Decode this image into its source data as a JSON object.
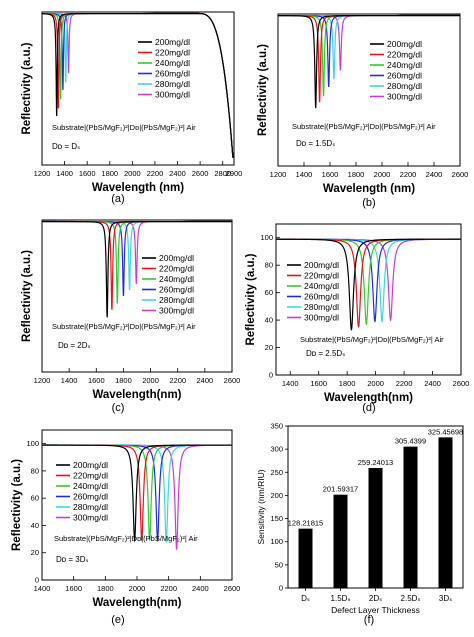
{
  "panels": [
    {
      "panel_label": "(a)",
      "type": "line",
      "xlabel": "Wavelength (nm)",
      "ylabel": "Reflectivity (a.u.)",
      "xlim": [
        1200,
        2900
      ],
      "x_ticks": [
        1200,
        1400,
        1600,
        1800,
        2000,
        2200,
        2400,
        2600,
        2800,
        2900
      ],
      "x_tick_labels": [
        "1200",
        "1400",
        "1600",
        "1800",
        "2000",
        "2200",
        "2400",
        "2600",
        "2800",
        "2900"
      ],
      "ylim": [
        0,
        100
      ],
      "y_ticks": [],
      "structure": "Substrate|(PbS/MgF₂)²|Dᴅ|(PbS/MgF₂)²| Air",
      "defect": "Dᴅ = Dₛ",
      "edge_start": 2580,
      "edge_end": 2890,
      "edge_floor": 5,
      "dip_width": 6,
      "legend_names": [
        "200mg/dl",
        "220mg/dl",
        "240mg/dl",
        "260mg/dl",
        "280mg/dl",
        "300mg/dl"
      ],
      "series": [
        {
          "name": "200mg/dl",
          "dip_x": 1330,
          "dip_y": 32
        },
        {
          "name": "220mg/dl",
          "dip_x": 1345,
          "dip_y": 37
        },
        {
          "name": "240mg/dl",
          "dip_x": 1365,
          "dip_y": 43
        },
        {
          "name": "260mg/dl",
          "dip_x": 1385,
          "dip_y": 49
        },
        {
          "name": "280mg/dl",
          "dip_x": 1410,
          "dip_y": 54
        },
        {
          "name": "300mg/dl",
          "dip_x": 1435,
          "dip_y": 60
        }
      ]
    },
    {
      "panel_label": "(b)",
      "type": "line",
      "xlabel": "Wavelength (nm)",
      "ylabel": "Reflectivity (a.u.)",
      "xlim": [
        1200,
        2600
      ],
      "x_ticks": [
        1200,
        1400,
        1600,
        1800,
        2000,
        2200,
        2400,
        2600
      ],
      "x_tick_labels": [
        "1200",
        "1400",
        "1600",
        "1800",
        "2000",
        "2200",
        "2400",
        "2600"
      ],
      "ylim": [
        0,
        100
      ],
      "y_ticks": [],
      "structure": "Substrate|(PbS/MgF₂)²|Dᴅ|(PbS/MgF₂)²| Air",
      "defect": "Dᴅ = 1.5Dₛ",
      "edge_start": null,
      "edge_end": null,
      "edge_floor": null,
      "dip_width": 8,
      "legend_names": [
        "200mg/dl",
        "220mg/dl",
        "240mg/dl",
        "260mg/dl",
        "280mg/dl",
        "300mg/dl"
      ],
      "series": [
        {
          "name": "200mg/dl",
          "dip_x": 1490,
          "dip_y": 38
        },
        {
          "name": "220mg/dl",
          "dip_x": 1520,
          "dip_y": 42
        },
        {
          "name": "240mg/dl",
          "dip_x": 1550,
          "dip_y": 46
        },
        {
          "name": "260mg/dl",
          "dip_x": 1590,
          "dip_y": 52
        },
        {
          "name": "280mg/dl",
          "dip_x": 1630,
          "dip_y": 57
        },
        {
          "name": "300mg/dl",
          "dip_x": 1680,
          "dip_y": 63
        }
      ]
    },
    {
      "panel_label": "(c)",
      "type": "line",
      "xlabel": "Wavelength(nm)",
      "ylabel": "Reflectivity (a.u.)",
      "xlim": [
        1200,
        2600
      ],
      "x_ticks": [
        1200,
        1400,
        1600,
        1800,
        2000,
        2200,
        2400,
        2600
      ],
      "x_tick_labels": [
        "1200",
        "1400",
        "1600",
        "1800",
        "2000",
        "2200",
        "2400",
        "2600"
      ],
      "ylim": [
        0,
        100
      ],
      "y_ticks": [],
      "structure": "Substrate|(PbS/MgF₂)²|Dᴅ|(PbS/MgF₂)²| Air",
      "defect": "Dᴅ = 2Dₛ",
      "edge_start": null,
      "edge_end": null,
      "edge_floor": null,
      "dip_width": 7,
      "legend_names": [
        "200mg/dl",
        "220mg/dl",
        "240mg/dl",
        "260mg/dl",
        "280mg/dl",
        "300mg/dl"
      ],
      "series": [
        {
          "name": "200mg/dl",
          "dip_x": 1680,
          "dip_y": 36
        },
        {
          "name": "220mg/dl",
          "dip_x": 1715,
          "dip_y": 41
        },
        {
          "name": "240mg/dl",
          "dip_x": 1755,
          "dip_y": 45
        },
        {
          "name": "260mg/dl",
          "dip_x": 1800,
          "dip_y": 50
        },
        {
          "name": "280mg/dl",
          "dip_x": 1845,
          "dip_y": 54
        },
        {
          "name": "300mg/dl",
          "dip_x": 1895,
          "dip_y": 58
        }
      ]
    },
    {
      "panel_label": "(d)",
      "type": "line",
      "xlabel": "Wavelength(nm)",
      "ylabel": "Reflectivity (a.u.)",
      "xlim": [
        1300,
        2600
      ],
      "x_ticks": [
        1400,
        1600,
        1800,
        2000,
        2200,
        2400,
        2600
      ],
      "x_tick_labels": [
        "1400",
        "1600",
        "1800",
        "2000",
        "2200",
        "2400",
        "2600"
      ],
      "ylim": [
        0,
        110
      ],
      "y_ticks": [
        0,
        20,
        40,
        60,
        80,
        100
      ],
      "structure": "Substrate|(PbS/MgF₂)²|Dᴅ|(PbS/MgF₂)²| Air",
      "defect": "Dᴅ = 2.5Dₛ",
      "edge_start": null,
      "edge_end": null,
      "edge_floor": null,
      "dip_width": 18,
      "legend_names": [
        "200mg/dl",
        "220mg/dl",
        "240mg/dl",
        "260mg/dl",
        "280mg/dl",
        "300mg/dl"
      ],
      "series": [
        {
          "name": "200mg/dl",
          "dip_x": 1830,
          "dip_y": 33
        },
        {
          "name": "220mg/dl",
          "dip_x": 1880,
          "dip_y": 35
        },
        {
          "name": "240mg/dl",
          "dip_x": 1935,
          "dip_y": 37
        },
        {
          "name": "260mg/dl",
          "dip_x": 1995,
          "dip_y": 39
        },
        {
          "name": "280mg/dl",
          "dip_x": 2045,
          "dip_y": 39
        },
        {
          "name": "300mg/dl",
          "dip_x": 2105,
          "dip_y": 40
        }
      ]
    },
    {
      "panel_label": "(e)",
      "type": "line",
      "xlabel": "Wavelength(nm)",
      "ylabel": "Reflectivity (a.u.)",
      "xlim": [
        1400,
        2600
      ],
      "x_ticks": [
        1400,
        1600,
        1800,
        2000,
        2200,
        2400,
        2600
      ],
      "x_tick_labels": [
        "1400",
        "1600",
        "1800",
        "2000",
        "2200",
        "2400",
        "2600"
      ],
      "ylim": [
        0,
        110
      ],
      "y_ticks": [
        0,
        20,
        40,
        60,
        80,
        100
      ],
      "structure": "Substrate|(PbS/MgF₂)²|Dᴅ|(PbS/MgF₂)²| Air",
      "defect": "Dᴅ = 3Dₛ",
      "edge_start": null,
      "edge_end": null,
      "edge_floor": null,
      "dip_width": 12,
      "legend_names": [
        "200mg/dl",
        "220mg/dl",
        "240mg/dl",
        "260mg/dl",
        "280mg/dl",
        "300mg/dl"
      ],
      "series": [
        {
          "name": "200mg/dl",
          "dip_x": 1985,
          "dip_y": 29
        },
        {
          "name": "220mg/dl",
          "dip_x": 2030,
          "dip_y": 29
        },
        {
          "name": "240mg/dl",
          "dip_x": 2080,
          "dip_y": 29
        },
        {
          "name": "260mg/dl",
          "dip_x": 2130,
          "dip_y": 29
        },
        {
          "name": "280mg/dl",
          "dip_x": 2185,
          "dip_y": 28
        },
        {
          "name": "300mg/dl",
          "dip_x": 2250,
          "dip_y": 23
        }
      ]
    }
  ],
  "series_colors": [
    "#000000",
    "#e8141c",
    "#36c82c",
    "#1e2ce0",
    "#3ad8e0",
    "#c83cd2"
  ],
  "chart_data": [
    {
      "panel_label": "(f)",
      "type": "bar",
      "xlabel": "Defect Layer Thickness",
      "ylabel": "Sensitivity (nm/RIU)",
      "categories": [
        "Dₛ",
        "1.5Dₛ",
        "2Dₛ",
        "2.5Dₛ",
        "3Dₛ"
      ],
      "values": [
        128.21815,
        201.59317,
        259.24013,
        305.4399,
        325.45698
      ],
      "value_labels": [
        "128.21815",
        "201.59317",
        "259.24013",
        "305.4399",
        "325.45698"
      ],
      "ylim": [
        0,
        350
      ],
      "y_ticks": [
        0,
        50,
        100,
        150,
        200,
        250,
        300,
        350
      ],
      "y_tick_labels": [
        "0",
        "50",
        "100",
        "150",
        "200",
        "250",
        "300",
        "350"
      ],
      "bar_color": "#000000"
    }
  ]
}
